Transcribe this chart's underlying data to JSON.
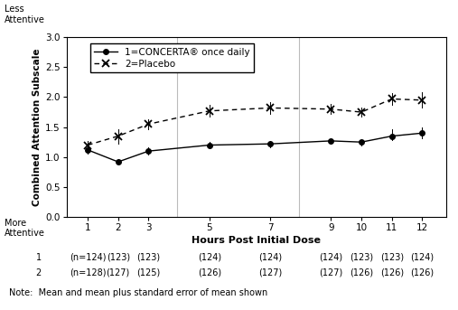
{
  "concerta_x": [
    1,
    2,
    3,
    5,
    7,
    9,
    10,
    11,
    12
  ],
  "concerta_y": [
    1.12,
    0.92,
    1.1,
    1.2,
    1.22,
    1.27,
    1.25,
    1.35,
    1.4
  ],
  "placebo_x": [
    1,
    2,
    3,
    5,
    7,
    9,
    10,
    11,
    12
  ],
  "placebo_y": [
    1.2,
    1.35,
    1.55,
    1.77,
    1.82,
    1.8,
    1.75,
    1.97,
    1.95
  ],
  "placebo_high": [
    1.27,
    1.47,
    1.63,
    1.87,
    1.92,
    1.88,
    1.83,
    2.07,
    2.08
  ],
  "placebo_low": [
    1.13,
    1.23,
    1.47,
    1.67,
    1.72,
    1.72,
    1.67,
    1.87,
    1.82
  ],
  "concerta_high": [
    1.18,
    0.97,
    1.16,
    1.25,
    1.27,
    1.32,
    1.3,
    1.46,
    1.5
  ],
  "concerta_low": [
    1.06,
    0.87,
    1.04,
    1.15,
    1.17,
    1.22,
    1.2,
    1.28,
    1.32
  ],
  "xticks": [
    1,
    2,
    3,
    5,
    7,
    9,
    10,
    11,
    12
  ],
  "ylim": [
    0.0,
    3.0
  ],
  "yticks": [
    0.0,
    0.5,
    1.0,
    1.5,
    2.0,
    2.5,
    3.0
  ],
  "xlabel": "Hours Post Initial Dose",
  "ylabel": "Combined Attention Subscale",
  "legend1": "1=CONCERTA® once daily",
  "legend2": "2=Placebo",
  "note": "Note:  Mean and mean plus standard error of mean shown",
  "less_attentive": "Less\nAttentive",
  "more_attentive": "More\nAttentive",
  "sample1_positions": [
    1,
    2,
    3,
    5,
    7,
    9,
    10,
    11,
    12
  ],
  "sample1_label": "1",
  "sample1_n": "(n=124)",
  "sample1_vals": [
    "(123)",
    "(123)",
    "(124)",
    "(124)",
    "(124)",
    "(123)",
    "(123)",
    "(124)"
  ],
  "sample2_label": "2",
  "sample2_n": "(n=128)",
  "sample2_vals": [
    "(127)",
    "(125)",
    "(126)",
    "(127)",
    "(127)",
    "(126)",
    "(126)",
    "(126)"
  ]
}
